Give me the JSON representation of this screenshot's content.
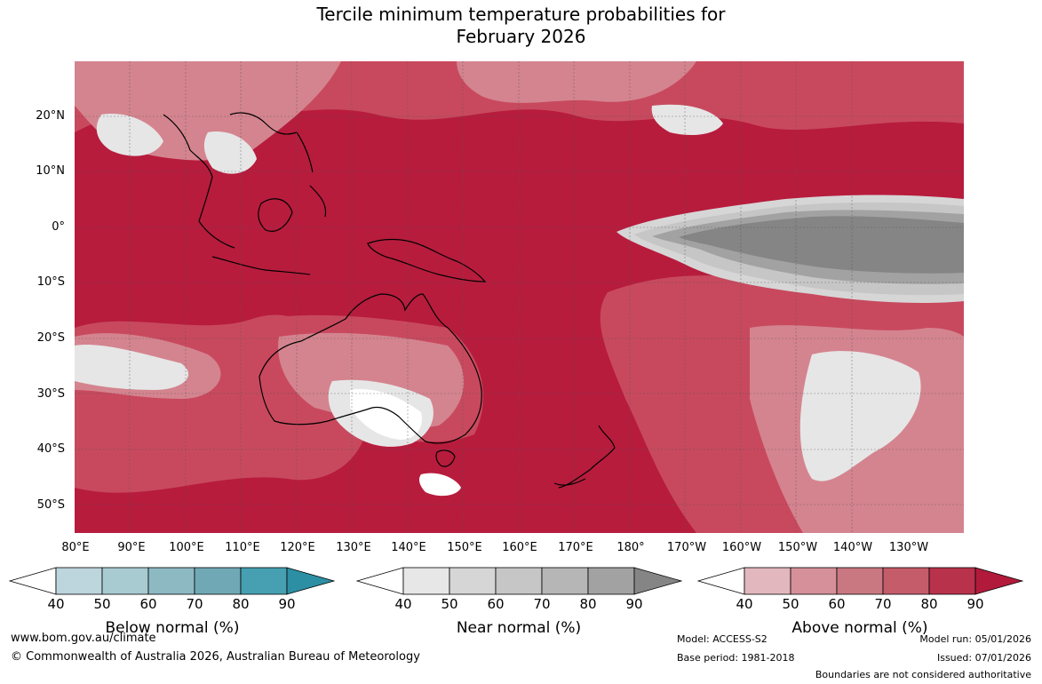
{
  "title_line1": "Tercile minimum temperature probabilities for",
  "title_line2": "February 2026",
  "latitudes": [
    "20°N",
    "10°N",
    "0°",
    "10°S",
    "20°S",
    "30°S",
    "40°S",
    "50°S"
  ],
  "longitudes": [
    "80°E",
    "90°E",
    "100°E",
    "110°E",
    "120°E",
    "130°E",
    "140°E",
    "150°E",
    "160°E",
    "170°E",
    "180°",
    "170°W",
    "160°W",
    "150°W",
    "140°W",
    "130°W"
  ],
  "colorbars": [
    {
      "label": "Below normal (%)",
      "ticks": [
        "40",
        "50",
        "60",
        "70",
        "80",
        "90"
      ],
      "colors": [
        "#ffffff",
        "#bdd5dc",
        "#a8cbd2",
        "#8db9c3",
        "#70a9b5",
        "#46a0b2",
        "#2d8fa3"
      ]
    },
    {
      "label": "Near normal (%)",
      "ticks": [
        "40",
        "50",
        "60",
        "70",
        "80",
        "90"
      ],
      "colors": [
        "#ffffff",
        "#e7e7e7",
        "#d6d6d6",
        "#c6c6c6",
        "#b6b6b6",
        "#a2a2a2",
        "#858585"
      ]
    },
    {
      "label": "Above normal (%)",
      "ticks": [
        "40",
        "50",
        "60",
        "70",
        "80",
        "90"
      ],
      "colors": [
        "#ffffff",
        "#e2b7be",
        "#d5909a",
        "#c97882",
        "#c55c6a",
        "#b9324b",
        "#b11a3b"
      ]
    }
  ],
  "footer": {
    "website": "www.bom.gov.au/climate",
    "copyright": "© Commonwealth of Australia 2026, Australian Bureau of Meteorology",
    "model": "Model: ACCESS-S2",
    "base_period": "Base period: 1981-2018",
    "model_run": "Model run: 05/01/2026",
    "issued": "Issued: 07/01/2026",
    "disclaimer": "Boundaries are not considered authoritative"
  }
}
